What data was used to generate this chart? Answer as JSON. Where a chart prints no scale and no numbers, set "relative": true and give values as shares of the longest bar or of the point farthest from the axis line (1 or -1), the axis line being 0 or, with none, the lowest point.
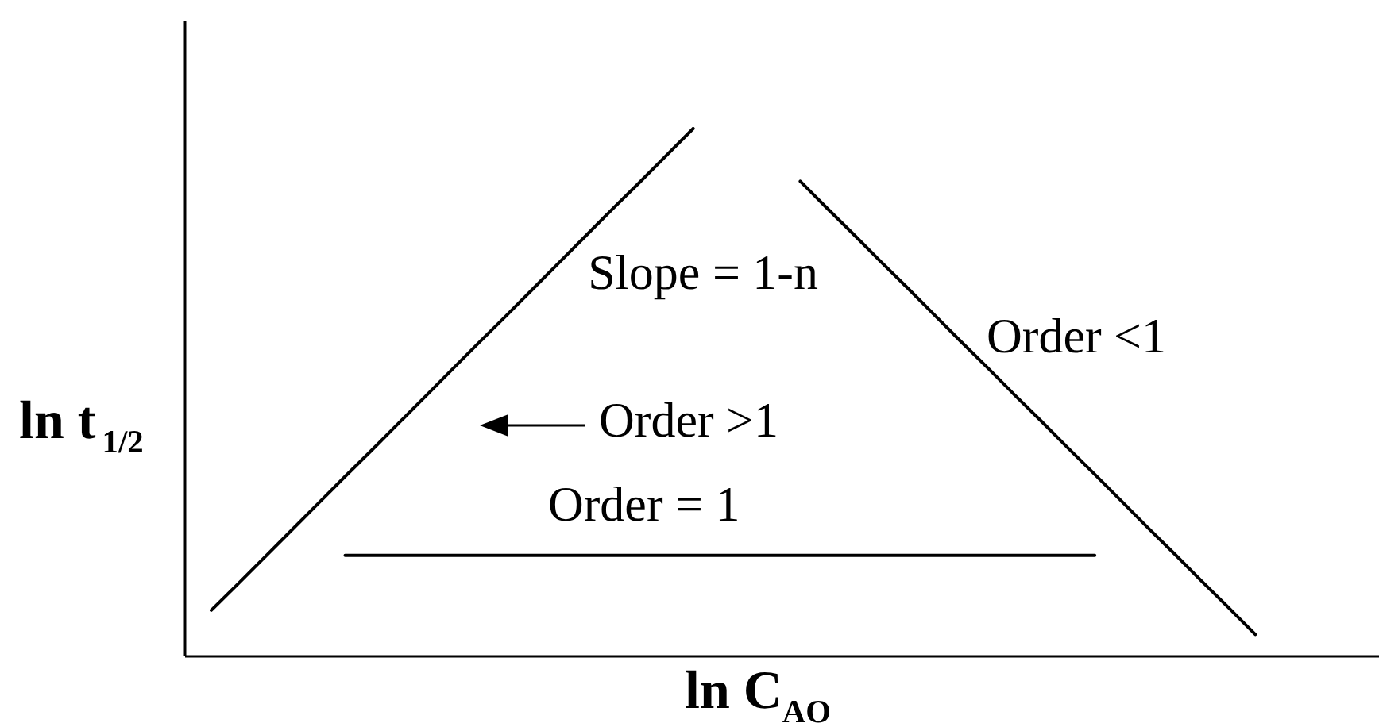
{
  "chart_data": {
    "type": "line",
    "relative": true,
    "xlabel": "ln C$_{AO}$",
    "ylabel": "ln t$_{1/2}$",
    "annotations": [
      "Slope = 1-n"
    ],
    "categories": [
      null,
      null,
      null,
      null,
      null,
      null,
      null,
      null,
      null,
      null,
      null,
      null,
      null,
      null,
      null,
      null,
      null,
      null,
      null,
      null,
      null,
      null,
      null,
      null,
      null,
      null,
      null,
      null,
      null,
      null,
      null,
      null,
      null,
      null,
      null,
      null,
      null,
      null,
      null,
      null
    ],
    "series": [
      {
        "name": "Order >1",
        "color": "#000000",
        "values": [
          0.086,
          0.136,
          0.187,
          0.238,
          0.289,
          0.34,
          0.39,
          0.441,
          0.492,
          0.543,
          0.594,
          0.644,
          0.695,
          0.746,
          0.797,
          0.848,
          0.898,
          0.949,
          1.0,
          null,
          null,
          null,
          null,
          null,
          null,
          null,
          null,
          null,
          null,
          null,
          null,
          null,
          null,
          null,
          null,
          null,
          null,
          null,
          null,
          null
        ]
      },
      {
        "name": "Order = 1",
        "color": "#000000",
        "values": [
          null,
          null,
          null,
          null,
          null,
          0.19,
          0.19,
          0.19,
          0.19,
          0.19,
          0.19,
          0.19,
          0.19,
          0.19,
          0.19,
          0.19,
          0.19,
          0.19,
          0.19,
          0.19,
          0.19,
          0.19,
          0.19,
          0.19,
          0.19,
          0.19,
          0.19,
          0.19,
          0.19,
          0.19,
          0.19,
          0.19,
          0.19,
          0.19,
          null,
          null,
          null,
          null,
          null,
          null
        ]
      },
      {
        "name": "Order <1",
        "color": "#000000",
        "values": [
          null,
          null,
          null,
          null,
          null,
          null,
          null,
          null,
          null,
          null,
          null,
          null,
          null,
          null,
          null,
          null,
          null,
          null,
          null,
          null,
          null,
          null,
          0.9,
          0.849,
          0.799,
          0.748,
          0.698,
          0.647,
          0.596,
          0.546,
          0.495,
          0.445,
          0.394,
          0.344,
          0.293,
          0.242,
          0.192,
          0.141,
          0.091,
          0.04
        ]
      }
    ]
  }
}
